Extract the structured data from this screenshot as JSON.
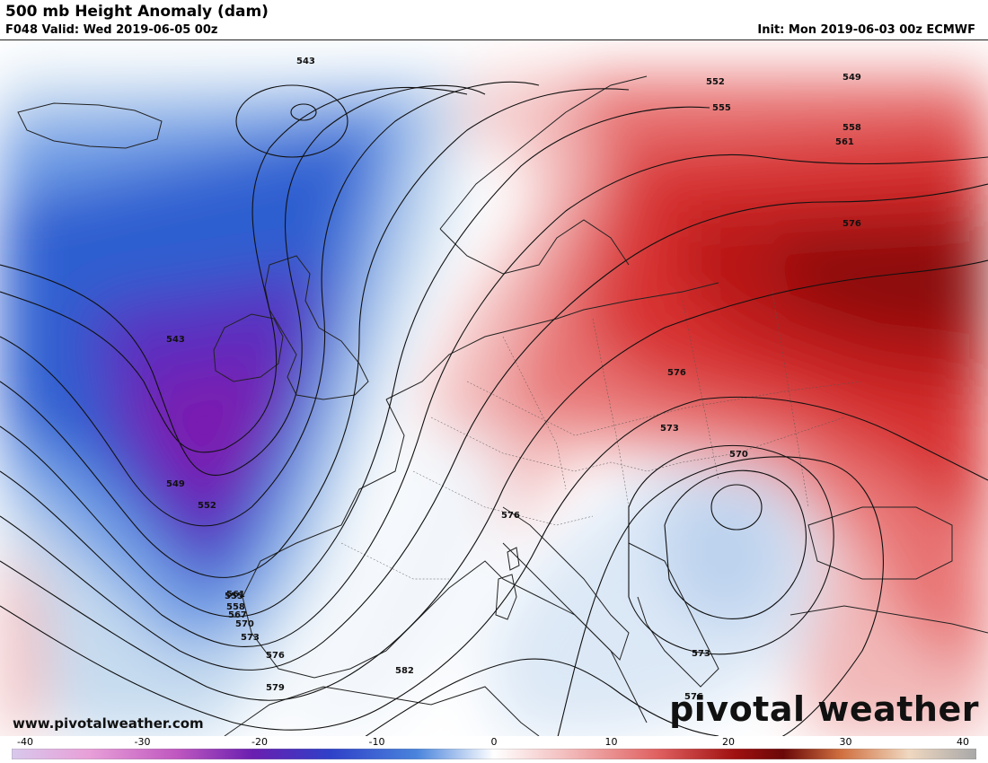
{
  "header": {
    "title": "500 mb Height Anomaly (dam)",
    "valid": "F048 Valid: Wed 2019-06-05 00z",
    "init": "Init: Mon 2019-06-03 00z ECMWF"
  },
  "footer": {
    "website": "www.pivotalweather.com",
    "logo": "pivotal weather"
  },
  "contour_labels": [
    "543",
    "543",
    "549",
    "552",
    "555",
    "558",
    "561",
    "567",
    "570",
    "573",
    "576",
    "579",
    "582",
    "549",
    "552",
    "555",
    "558",
    "561",
    "576",
    "576",
    "573",
    "570",
    "576",
    "573",
    "576"
  ],
  "colorbar": {
    "min": -40,
    "max": 40,
    "tick_values": [
      -40,
      -30,
      -20,
      -10,
      0,
      10,
      20,
      30,
      40
    ],
    "tick_labels": [
      "-40",
      "-30",
      "-20",
      "-10",
      "0",
      "10",
      "20",
      "30",
      "40"
    ]
  },
  "colors": {
    "strong_negative": "#7a1fb0",
    "negative": "#2f5fd0",
    "weak_negative": "#c8dcf0",
    "neutral": "#ffffff",
    "weak_positive": "#f4c8c8",
    "positive": "#d83a3a",
    "strong_positive": "#8a0a0a"
  }
}
